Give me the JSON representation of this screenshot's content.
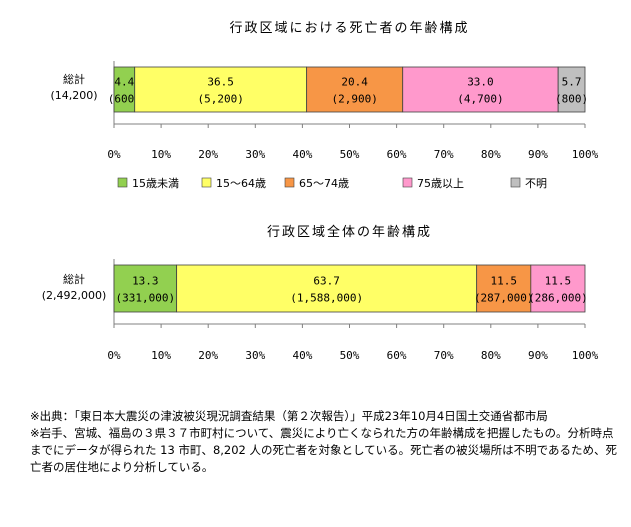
{
  "chart_data": [
    {
      "type": "bar",
      "orientation": "horizontal-stacked-percent",
      "title": "行政区域における死亡者の年齢構成",
      "categories": [
        "総計"
      ],
      "category_sub": [
        "(14,200)"
      ],
      "series": [
        {
          "name": "15歳未満",
          "values": [
            4.4
          ],
          "count": "(600)",
          "color": "#92d050"
        },
        {
          "name": "15～64歳",
          "values": [
            36.5
          ],
          "count": "(5,200)",
          "color": "#ffff66"
        },
        {
          "name": "65～74歳",
          "values": [
            20.4
          ],
          "count": "(2,900)",
          "color": "#f79646"
        },
        {
          "name": "75歳以上",
          "values": [
            33.0
          ],
          "count": "(4,700)",
          "color": "#ff99cc"
        },
        {
          "name": "不明",
          "values": [
            5.7
          ],
          "count": "(800)",
          "color": "#bfbfbf"
        }
      ],
      "value_labels": [
        "4.4",
        "36.5",
        "20.4",
        "33.0",
        "5.7"
      ],
      "xlim": [
        0,
        100
      ],
      "xticks": [
        "0%",
        "10%",
        "20%",
        "30%",
        "40%",
        "50%",
        "60%",
        "70%",
        "80%",
        "90%",
        "100%"
      ],
      "legend_position": "bottom"
    },
    {
      "type": "bar",
      "orientation": "horizontal-stacked-percent",
      "title": "行政区域全体の年齢構成",
      "categories": [
        "総計"
      ],
      "category_sub": [
        "(2,492,000)"
      ],
      "series": [
        {
          "name": "15歳未満",
          "values": [
            13.3
          ],
          "count": "(331,000)",
          "color": "#92d050"
        },
        {
          "name": "15～64歳",
          "values": [
            63.7
          ],
          "count": "(1,588,000)",
          "color": "#ffff66"
        },
        {
          "name": "65～74歳",
          "values": [
            11.5
          ],
          "count": "(287,000)",
          "color": "#f79646"
        },
        {
          "name": "75歳以上",
          "values": [
            11.5
          ],
          "count": "(286,000)",
          "color": "#ff99cc"
        }
      ],
      "value_labels": [
        "13.3",
        "63.7",
        "11.5",
        "11.5"
      ],
      "xlim": [
        0,
        100
      ],
      "xticks": [
        "0%",
        "10%",
        "20%",
        "30%",
        "40%",
        "50%",
        "60%",
        "70%",
        "80%",
        "90%",
        "100%"
      ]
    }
  ],
  "notes": [
    "※出典：「東日本大震災の津波被災現況調査結果（第２次報告）」平成23年10月4日国土交通省都市局",
    "※岩手、宮城、福島の３県３７市町村について、震災により亡くなられた方の年齢構成を把握したもの。分析時点までにデータが得られた 13 市町、8,202 人の死亡者を対象としている。死亡者の被災場所は不明であるため、死亡者の居住地により分析している。"
  ]
}
